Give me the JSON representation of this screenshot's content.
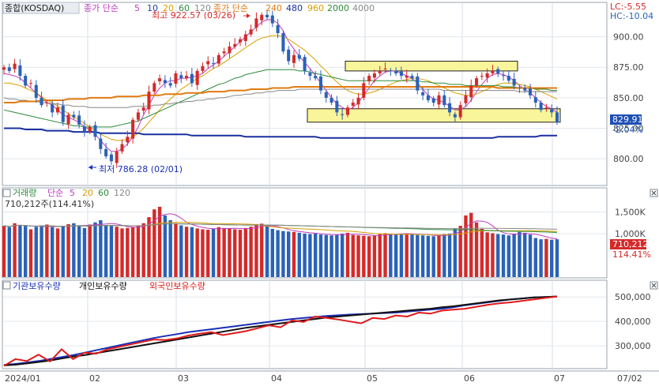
{
  "header": {
    "title": "종합(KOSDAQ)",
    "ma_label": "종가 단순",
    "ma_periods": [
      "5",
      "10",
      "20",
      "60",
      "120"
    ],
    "ma_label2": "종가 단순",
    "ma_periods2": [
      "240",
      "480",
      "960",
      "2000",
      "4000"
    ],
    "lc": "LC:-5.55",
    "hc": "HC:-10.04"
  },
  "annotations": {
    "high": "최고 922.57 (03/26)",
    "low": "최저 786.28 (02/01)"
  },
  "price_badge": {
    "price": "829.91",
    "change": "-2.04%"
  },
  "volume_header": {
    "title": "거래량",
    "ma_label": "단순",
    "ma_periods": [
      "5",
      "20",
      "60",
      "120"
    ],
    "current": "710,212주(114.41%)"
  },
  "volume_badge": {
    "value": "710,212",
    "pct": "114.41%"
  },
  "investor_legend": {
    "institution": "기관보유수량",
    "individual": "개인보유수량",
    "foreign": "외국인보유수량"
  },
  "colors": {
    "up": "#d42a2a",
    "down": "#2a62b8",
    "ma5": "#c03cc0",
    "ma10": "#1b3fa0",
    "ma20": "#d8a000",
    "ma60": "#2b8a3a",
    "ma120": "#888888",
    "ma240": "#e07a10",
    "ma480": "#1a2fa0",
    "box": "#f8f59a",
    "institution": "#1a2fb8",
    "individual": "#111111",
    "foreign": "#e01a1a"
  },
  "chart_data": [
    {
      "type": "candlestick",
      "x_ticks": [
        "2024/01",
        "02",
        "03",
        "04",
        "05",
        "06",
        "07",
        "07/02"
      ],
      "y_ticks": [
        "900.00",
        "875.00",
        "850.00",
        "825.00",
        "800.00"
      ],
      "ylim": [
        780,
        925
      ],
      "high": {
        "value": 922.57,
        "date": "03/26"
      },
      "low": {
        "value": 786.28,
        "date": "02/01"
      },
      "close": [
        875,
        872,
        878,
        868,
        860,
        862,
        850,
        844,
        846,
        838,
        842,
        830,
        836,
        834,
        828,
        822,
        826,
        818,
        808,
        802,
        798,
        806,
        812,
        818,
        832,
        838,
        842,
        855,
        862,
        866,
        862,
        860,
        870,
        866,
        868,
        862,
        872,
        876,
        880,
        878,
        885,
        888,
        892,
        894,
        898,
        902,
        906,
        915,
        918,
        916,
        911,
        903,
        888,
        880,
        885,
        882,
        872,
        868,
        866,
        856,
        850,
        846,
        838,
        836,
        842,
        846,
        850,
        862,
        868,
        870,
        872,
        874,
        872,
        870,
        868,
        868,
        866,
        856,
        852,
        848,
        846,
        852,
        844,
        838,
        834,
        844,
        852,
        860,
        866,
        868,
        870,
        872,
        870,
        868,
        864,
        860,
        858,
        856,
        852,
        846,
        840,
        842,
        838,
        829.91
      ],
      "ma_lines": [
        {
          "name": "5",
          "values": [
            870,
            869,
            868,
            866,
            862,
            858,
            854,
            850,
            846,
            844,
            840,
            836,
            834,
            832,
            830,
            826,
            824,
            820,
            815,
            810,
            806,
            806,
            808,
            812,
            818,
            826,
            836,
            844,
            852,
            858,
            862,
            864,
            864,
            866,
            866,
            867,
            868,
            870,
            874,
            877,
            880,
            884,
            888,
            892,
            896,
            900,
            904,
            908,
            912,
            914,
            914,
            911,
            905,
            896,
            890,
            884,
            879,
            874,
            868,
            862,
            856,
            850,
            845,
            842,
            840,
            842,
            846,
            852,
            858,
            864,
            868,
            871,
            872,
            872,
            870,
            868,
            866,
            862,
            857,
            852,
            849,
            848,
            846,
            843,
            840,
            840,
            843,
            848,
            855,
            861,
            866,
            869,
            870,
            869,
            867,
            864,
            860,
            857,
            854,
            850,
            846,
            843,
            841,
            838
          ]
        },
        {
          "name": "20",
          "values": [
            862,
            862,
            861,
            860,
            858,
            856,
            854,
            851,
            848,
            846,
            843,
            840,
            837,
            834,
            832,
            829,
            826,
            823,
            820,
            818,
            816,
            815,
            815,
            816,
            818,
            821,
            825,
            830,
            835,
            840,
            845,
            849,
            853,
            857,
            860,
            863,
            866,
            868,
            871,
            874,
            876,
            879,
            882,
            885,
            888,
            891,
            894,
            897,
            899,
            900,
            901,
            901,
            900,
            898,
            895,
            892,
            889,
            885,
            881,
            876,
            872,
            867,
            863,
            859,
            856,
            854,
            853,
            853,
            854,
            855,
            857,
            859,
            861,
            863,
            864,
            865,
            866,
            866,
            865,
            864,
            862,
            860,
            858,
            856,
            854,
            853,
            852,
            852,
            853,
            855,
            857,
            859,
            861,
            862,
            862,
            862,
            861,
            860,
            859,
            857,
            855,
            853,
            851,
            849
          ]
        },
        {
          "name": "60",
          "values": [
            840,
            839,
            838,
            837,
            836,
            835,
            834,
            833,
            832,
            831,
            830,
            829,
            828,
            827,
            827,
            826,
            826,
            826,
            826,
            826,
            826,
            827,
            828,
            829,
            830,
            831,
            833,
            835,
            837,
            839,
            841,
            843,
            845,
            847,
            849,
            851,
            853,
            855,
            857,
            859,
            861,
            862,
            864,
            866,
            867,
            869,
            870,
            871,
            872,
            873,
            873,
            873,
            873,
            873,
            873,
            872,
            872,
            871,
            870,
            869,
            868,
            867,
            866,
            865,
            864,
            864,
            864,
            864,
            864,
            864,
            864,
            864,
            864,
            864,
            864,
            864,
            864,
            864,
            863,
            863,
            862,
            862,
            862,
            861,
            861,
            861,
            860,
            860,
            860,
            860,
            860,
            860,
            860,
            859,
            859,
            859,
            858,
            858,
            858,
            857,
            857,
            857,
            856,
            856
          ]
        },
        {
          "name": "120",
          "values": [
            850,
            849,
            849,
            848,
            848,
            847,
            847,
            846,
            846,
            845,
            845,
            844,
            844,
            843,
            843,
            843,
            842,
            842,
            842,
            842,
            842,
            842,
            842,
            842,
            843,
            843,
            843,
            843,
            844,
            844,
            845,
            845,
            846,
            846,
            847,
            847,
            848,
            848,
            849,
            849,
            850,
            850,
            851,
            852,
            852,
            853,
            853,
            854,
            854,
            855,
            855,
            856,
            856,
            856,
            856,
            857,
            857,
            857,
            857,
            857,
            857,
            857,
            857,
            857,
            857,
            857,
            857,
            857,
            857,
            857,
            857,
            857,
            857,
            857,
            857,
            857,
            857,
            857,
            857,
            857,
            857,
            857,
            856,
            856,
            856,
            856,
            856,
            856,
            856,
            856,
            856,
            856,
            856,
            856,
            856,
            856,
            855,
            855,
            855,
            855,
            855,
            855,
            855,
            855
          ]
        },
        {
          "name": "240",
          "values": [
            846,
            846,
            846,
            847,
            847,
            847,
            847,
            848,
            848,
            848,
            848,
            848,
            849,
            849,
            849,
            849,
            850,
            850,
            850,
            850,
            850,
            851,
            851,
            851,
            851,
            851,
            852,
            852,
            852,
            852,
            853,
            853,
            853,
            853,
            854,
            854,
            854,
            854,
            855,
            855,
            855,
            855,
            856,
            856,
            856,
            856,
            857,
            857,
            857,
            857,
            858,
            858,
            858,
            858,
            859,
            859,
            859,
            859,
            859,
            859,
            859,
            859,
            859,
            859,
            859,
            859,
            859,
            859,
            859,
            859,
            859,
            859,
            859,
            859,
            859,
            859,
            859,
            859,
            859,
            859,
            859,
            859,
            859,
            859,
            859,
            859,
            859,
            859,
            859,
            859,
            859,
            859,
            858,
            858,
            858,
            858,
            858,
            858,
            858,
            858,
            858,
            858,
            858,
            858
          ]
        },
        {
          "name": "480",
          "values": [
            825,
            825,
            825,
            825,
            824,
            824,
            824,
            824,
            823,
            823,
            823,
            823,
            823,
            822,
            822,
            822,
            822,
            822,
            821,
            821,
            821,
            821,
            821,
            821,
            821,
            821,
            820,
            820,
            820,
            820,
            820,
            820,
            820,
            820,
            820,
            819,
            819,
            819,
            819,
            819,
            819,
            819,
            819,
            819,
            819,
            818,
            818,
            818,
            818,
            818,
            818,
            818,
            818,
            818,
            818,
            818,
            818,
            818,
            818,
            817,
            817,
            817,
            817,
            817,
            817,
            817,
            817,
            817,
            817,
            817,
            817,
            817,
            817,
            817,
            817,
            817,
            817,
            817,
            817,
            817,
            817,
            817,
            817,
            817,
            817,
            817,
            817,
            817,
            817,
            817,
            817,
            817,
            818,
            818,
            818,
            818,
            818,
            818,
            818,
            818,
            819,
            819,
            819,
            819
          ]
        }
      ]
    },
    {
      "type": "bar",
      "name": "volume",
      "y_ticks": [
        "1,500K",
        "1,000K"
      ],
      "ylim": [
        0,
        1800
      ],
      "values_k": [
        1180,
        1150,
        1240,
        1200,
        1180,
        1100,
        1160,
        1190,
        1210,
        1150,
        1120,
        1180,
        1220,
        1240,
        1170,
        1130,
        1210,
        1260,
        1310,
        1200,
        1180,
        1160,
        1120,
        1130,
        1150,
        1190,
        1240,
        1380,
        1560,
        1620,
        1420,
        1310,
        1240,
        1190,
        1160,
        1150,
        1120,
        1100,
        1090,
        1110,
        1150,
        1130,
        1120,
        1100,
        1090,
        1130,
        1160,
        1220,
        1230,
        1180,
        1110,
        1080,
        1060,
        1050,
        1040,
        1020,
        1000,
        990,
        1000,
        980,
        970,
        960,
        980,
        1000,
        1020,
        970,
        960,
        950,
        940,
        960,
        990,
        1010,
        1000,
        980,
        1000,
        1010,
        990,
        970,
        960,
        950,
        940,
        960,
        990,
        1000,
        1120,
        1180,
        1420,
        1480,
        1260,
        1110,
        1030,
        1010,
        990,
        980,
        960,
        1000,
        1040,
        1020,
        980,
        900,
        870,
        880,
        860,
        870
      ]
    },
    {
      "type": "line",
      "name": "investor holdings",
      "y_ticks": [
        "500,000",
        "400,000",
        "300,000"
      ],
      "ylim": [
        210000,
        520000
      ],
      "series": [
        {
          "name": "기관보유수량",
          "values": [
            222000,
            226000,
            232000,
            238000,
            246000,
            254000,
            262000,
            272000,
            282000,
            292000,
            302000,
            312000,
            322000,
            332000,
            340000,
            348000,
            356000,
            362000,
            368000,
            374000,
            380000,
            386000,
            392000,
            398000,
            404000,
            410000,
            414000,
            418000,
            422000,
            425000,
            428000,
            430000,
            432000,
            434000,
            436000,
            440000,
            444000,
            448000,
            452000,
            458000,
            466000,
            472000,
            478000,
            484000,
            490000,
            494000,
            498000,
            500000,
            502000
          ]
        },
        {
          "name": "개인보유수량",
          "values": [
            220000,
            223000,
            228000,
            234000,
            240000,
            248000,
            256000,
            262000,
            270000,
            278000,
            286000,
            294000,
            302000,
            310000,
            318000,
            326000,
            334000,
            342000,
            350000,
            358000,
            366000,
            374000,
            380000,
            386000,
            392000,
            398000,
            404000,
            410000,
            416000,
            420000,
            424000,
            428000,
            432000,
            436000,
            440000,
            444000,
            448000,
            452000,
            458000,
            462000,
            468000,
            474000,
            480000,
            486000,
            490000,
            494000,
            498000,
            500000,
            502000
          ]
        },
        {
          "name": "외국인보유수량",
          "values": [
            218000,
            246000,
            238000,
            264000,
            236000,
            286000,
            246000,
            272000,
            268000,
            286000,
            296000,
            306000,
            316000,
            326000,
            324000,
            330000,
            342000,
            350000,
            356000,
            344000,
            352000,
            360000,
            372000,
            384000,
            376000,
            404000,
            398000,
            420000,
            414000,
            408000,
            400000,
            392000,
            414000,
            410000,
            424000,
            420000,
            436000,
            432000,
            444000,
            448000,
            452000,
            460000,
            468000,
            474000,
            478000,
            484000,
            490000,
            496000,
            502000
          ]
        }
      ]
    }
  ]
}
